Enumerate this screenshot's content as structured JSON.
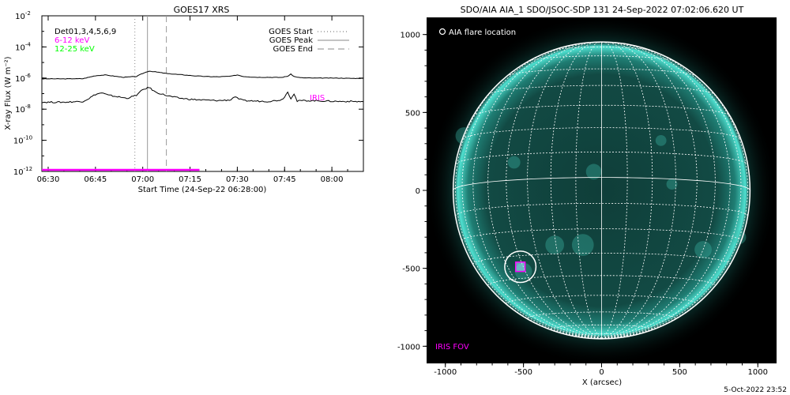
{
  "colors": {
    "background": "#ffffff",
    "axis": "#000000",
    "flux_series": "#000000",
    "low_energy": "#ff00ff",
    "high_energy": "#00ff00",
    "iris_fov": "#ff00ff",
    "sun_disk": "#0d3b36",
    "sun_limb": "#4fe0d0",
    "grid": "#ffffff"
  },
  "footer_timestamp": "5-Oct-2022 23:52",
  "chart_data": [
    {
      "type": "line",
      "title": "GOES17 XRS",
      "xlabel": "Start Time (24-Sep-22 06:28:00)",
      "ylabel": "X-ray Flux (W m⁻²)",
      "y_scale": "log",
      "ylim_exponents": [
        -12,
        -2
      ],
      "y_tick_base": "10",
      "y_tick_exponents": [
        "-2",
        "-4",
        "-6",
        "-8",
        "-10",
        "-12"
      ],
      "x_ticks": [
        "06:30",
        "06:45",
        "07:00",
        "07:15",
        "07:30",
        "07:45",
        "08:00"
      ],
      "x_tick_minutes": [
        390,
        405,
        420,
        435,
        450,
        465,
        480
      ],
      "xlim_minutes": [
        388,
        490
      ],
      "detector_label": "Det01,3,4,5,6,9",
      "channel_labels": [
        "6-12 keV",
        "12-25 keV"
      ],
      "legend": [
        "GOES Start",
        "GOES Peak",
        "GOES End"
      ],
      "legend_position": "top-right",
      "annotation": "IRIS",
      "vertical_markers_minutes": {
        "start": 417.5,
        "peak": 421.5,
        "end": 427.5
      },
      "series": [
        {
          "x_minutes": [
            388,
            395,
            401,
            405,
            408,
            411,
            414,
            418,
            420,
            422,
            424,
            428,
            432,
            436,
            440,
            444,
            448,
            450,
            452,
            456,
            460,
            464,
            466,
            467,
            468,
            470,
            474,
            478,
            482,
            486,
            490
          ],
          "log_flux": [
            -6.05,
            -6.05,
            -6.04,
            -5.85,
            -5.8,
            -5.88,
            -5.95,
            -5.9,
            -5.7,
            -5.55,
            -5.6,
            -5.72,
            -5.78,
            -5.85,
            -5.9,
            -5.92,
            -5.88,
            -5.8,
            -5.9,
            -5.95,
            -5.95,
            -5.96,
            -5.88,
            -5.75,
            -5.9,
            -5.98,
            -6.0,
            -6.0,
            -6.0,
            -6.02,
            -6.02
          ]
        },
        {
          "x_minutes": [
            388,
            395,
            401,
            403,
            405,
            407,
            409,
            412,
            415,
            418,
            420,
            422,
            424,
            428,
            432,
            436,
            440,
            444,
            448,
            449,
            450,
            452,
            456,
            460,
            464,
            465,
            466,
            467,
            468,
            469,
            470,
            474,
            478,
            482,
            486,
            490
          ],
          "log_flux": [
            -7.55,
            -7.55,
            -7.5,
            -7.3,
            -7.05,
            -6.95,
            -7.1,
            -7.2,
            -7.3,
            -7.1,
            -6.75,
            -6.6,
            -6.9,
            -7.15,
            -7.3,
            -7.38,
            -7.42,
            -7.45,
            -7.4,
            -7.2,
            -7.3,
            -7.45,
            -7.48,
            -7.5,
            -7.4,
            -7.2,
            -6.9,
            -7.3,
            -7.0,
            -7.5,
            -7.45,
            -7.45,
            -7.48,
            -7.5,
            -7.5,
            -7.52
          ]
        }
      ],
      "low_energy_band": {
        "log_flux": -11.9,
        "x_minutes": [
          388,
          438
        ]
      }
    },
    {
      "type": "image",
      "title": "SDO/AIA AIA_1 SDO/JSOC-SDP 131 24-Sep-2022 07:02:06.620 UT",
      "xlabel": "X (arcsec)",
      "x_ticks": [
        "-1000",
        "-500",
        "0",
        "500",
        "1000"
      ],
      "y_ticks": [
        "1000",
        "500",
        "0",
        "-500",
        "-1000"
      ],
      "xlim": [
        -1120,
        1120
      ],
      "ylim": [
        -1110,
        1110
      ],
      "legend_label": "AIA flare location",
      "fov_label": "IRIS FOV",
      "solar_radius_arcsec": 950,
      "flare_location": [
        -520,
        -490
      ],
      "iris_fov_half_width": 30
    }
  ]
}
